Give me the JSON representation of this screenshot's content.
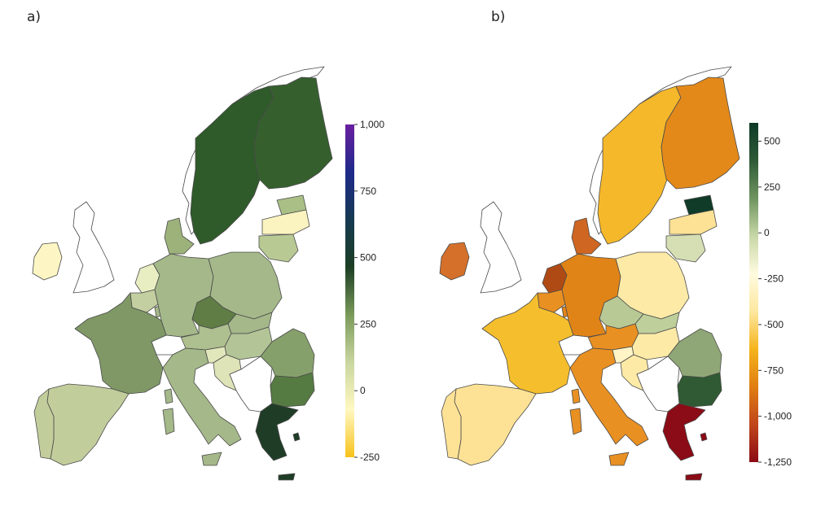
{
  "panels": [
    {
      "label": "a)",
      "legend": {
        "ticks": [
          "1,000",
          "750",
          "500",
          "250",
          "0",
          "-250"
        ],
        "range": [
          -250,
          1000
        ],
        "colors": [
          "#f7c21a",
          "#fff8c0",
          "#c9d6a0",
          "#7a9a5a",
          "#1c3e24",
          "#173a52",
          "#1e2a8a",
          "#6a1fa0"
        ]
      }
    },
    {
      "label": "b)",
      "legend": {
        "ticks": [
          "500",
          "250",
          "0",
          "-250",
          "-500",
          "-750",
          "-1,000",
          "-1,250"
        ],
        "range": [
          -1250,
          600
        ],
        "colors": [
          "#8b0a14",
          "#c0461a",
          "#e07e12",
          "#f5b41c",
          "#fde8a0",
          "#fffbe0",
          "#c7d7a6",
          "#6f9460",
          "#2e5a37",
          "#0d3a27"
        ]
      }
    }
  ],
  "map_colors": {
    "a": {
      "sweden": "#2f5a2a",
      "finland": "#35602e",
      "norway": "#ffffff",
      "ireland": "#fdf6c4",
      "uk": "#ffffff",
      "estonia": "#a9bf86",
      "latvia": "#fbf3c0",
      "lithuania": "#b8c994",
      "denmark": "#9db27a",
      "netherlands": "#e9eec2",
      "belgium": "#c3cfa0",
      "germany": "#a4b889",
      "poland": "#a4b889",
      "czechia": "#5f7d45",
      "slovakia": "#a4b889",
      "austria": "#aebf90",
      "hungary": "#b3c597",
      "france": "#7f9866",
      "spain": "#c2cd9c",
      "portugal": "#c2cd9c",
      "italy": "#a4b889",
      "slovenia": "#e2e7bb",
      "croatia": "#dfe4b8",
      "romania": "#86a06c",
      "bulgaria": "#567b42",
      "greece": "#1f3d26",
      "balkans": "#ffffff",
      "switzerland": "#ffffff",
      "luxembourg": "#a4b889"
    },
    "b": {
      "sweden": "#f5b82a",
      "finland": "#e3891a",
      "norway": "#ffffff",
      "ireland": "#d4702a",
      "uk": "#ffffff",
      "estonia": "#0f3b28",
      "latvia": "#fde296",
      "lithuania": "#d6dfb4",
      "denmark": "#cf6622",
      "netherlands": "#b04a14",
      "belgium": "#e99022",
      "germany": "#e08418",
      "poland": "#fdeaa6",
      "czechia": "#b9c996",
      "slovakia": "#bfcf9c",
      "austria": "#e99022",
      "hungary": "#fdeaa6",
      "france": "#f5be2c",
      "spain": "#fde296",
      "portugal": "#fde296",
      "italy": "#e99022",
      "slovenia": "#fff4c6",
      "croatia": "#fdeaa6",
      "romania": "#8fa776",
      "bulgaria": "#2f5a33",
      "greece": "#8b0b16",
      "balkans": "#ffffff",
      "switzerland": "#ffffff",
      "luxembourg": "#e08418"
    }
  }
}
